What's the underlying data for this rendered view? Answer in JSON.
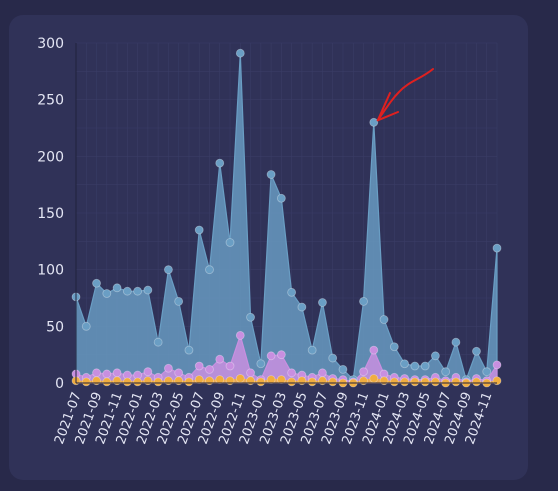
{
  "chart_data": {
    "type": "area",
    "title": "",
    "xlabel": "",
    "ylabel": "",
    "ylim": [
      0,
      300
    ],
    "yticks": [
      0,
      50,
      100,
      150,
      200,
      250,
      300
    ],
    "grid": true,
    "x": [
      "2021-07",
      "2021-08",
      "2021-09",
      "2021-10",
      "2021-11",
      "2021-12",
      "2022-01",
      "2022-02",
      "2022-03",
      "2022-04",
      "2022-05",
      "2022-06",
      "2022-07",
      "2022-08",
      "2022-09",
      "2022-10",
      "2022-11",
      "2022-12",
      "2023-01",
      "2023-02",
      "2023-03",
      "2023-04",
      "2023-05",
      "2023-06",
      "2023-07",
      "2023-08",
      "2023-09",
      "2023-10",
      "2023-11",
      "2023-12",
      "2024-01",
      "2024-02",
      "2024-03",
      "2024-04",
      "2024-05",
      "2024-06",
      "2024-07",
      "2024-08",
      "2024-09",
      "2024-10",
      "2024-11",
      "2024-12"
    ],
    "x_tick_labels": [
      "2021-07",
      "2021-09",
      "2021-11",
      "2022-01",
      "2022-03",
      "2022-05",
      "2022-07",
      "2022-09",
      "2022-11",
      "2023-01",
      "2023-03",
      "2023-05",
      "2023-07",
      "2023-09",
      "2023-11",
      "2024-01",
      "2024-03",
      "2024-05",
      "2024-07",
      "2024-09",
      "2024-11"
    ],
    "series": [
      {
        "color": "#6a9ec4",
        "values": [
          76,
          50,
          88,
          79,
          84,
          81,
          81,
          82,
          36,
          100,
          72,
          29,
          135,
          100,
          194,
          124,
          291,
          58,
          17,
          184,
          163,
          80,
          67,
          29,
          71,
          22,
          12,
          3,
          72,
          230,
          56,
          32,
          17,
          15,
          15,
          24,
          10,
          36,
          3,
          28,
          10,
          119
        ]
      },
      {
        "color": "#c88fe0",
        "values": [
          8,
          5,
          9,
          8,
          9,
          7,
          7,
          10,
          5,
          13,
          9,
          5,
          15,
          12,
          21,
          15,
          42,
          9,
          3,
          24,
          25,
          9,
          7,
          5,
          9,
          4,
          3,
          1,
          10,
          29,
          8,
          5,
          4,
          3,
          3,
          5,
          2,
          5,
          1,
          4,
          2,
          16
        ]
      },
      {
        "color": "#f0ad40",
        "values": [
          2,
          1,
          2,
          1,
          2,
          1,
          1,
          2,
          1,
          2,
          2,
          1,
          3,
          2,
          3,
          2,
          4,
          2,
          1,
          3,
          3,
          1,
          2,
          1,
          2,
          1,
          0,
          0,
          2,
          4,
          2,
          1,
          1,
          1,
          1,
          1,
          0,
          1,
          0,
          1,
          0,
          2
        ]
      }
    ],
    "annotation": {
      "type": "arrow",
      "color": "#e0201f",
      "target_x": "2023-12",
      "target_y": 230
    }
  }
}
